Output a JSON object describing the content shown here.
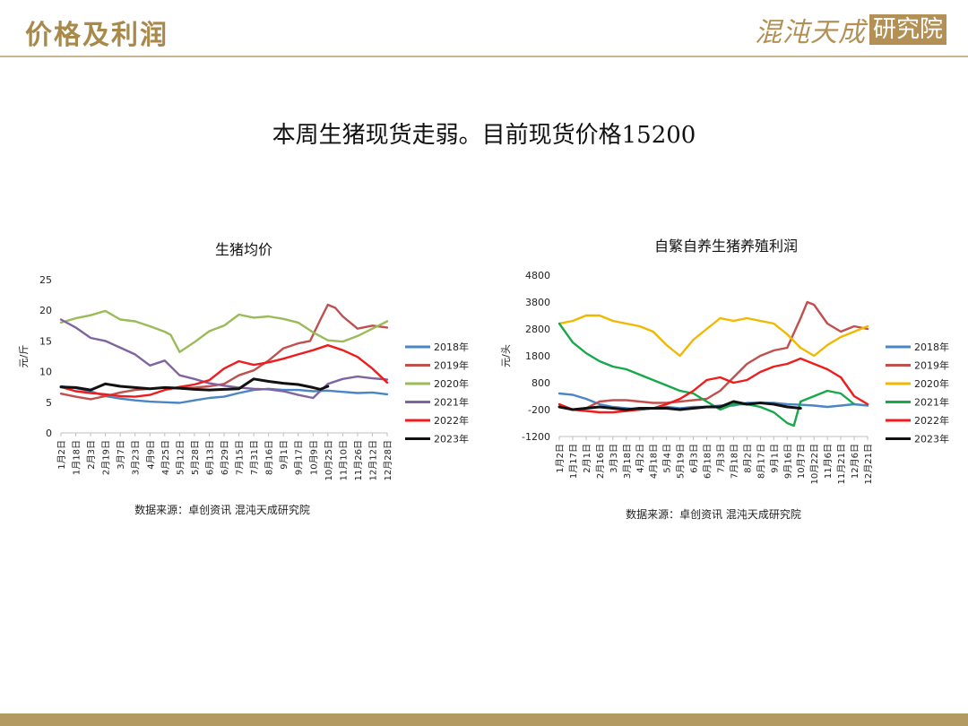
{
  "header": {
    "title": "价格及利润",
    "logo_text": "混沌天成",
    "logo_box": "研究院"
  },
  "headline": "本周生猪现货走弱。目前现货价格15200",
  "colors": {
    "2018年": "#4a86c5",
    "2019年": "#c0504d",
    "2020年": "#9bbb59",
    "2021年": "#8064a2",
    "2022年": "#ee1c1c",
    "2023年": "#111111",
    "2020年_profit": "#f2b800",
    "2021年_profit": "#17a84a"
  },
  "chart_data": [
    {
      "type": "line",
      "title": "生猪均价",
      "ylabel": "元/斤",
      "ylim": [
        0,
        25
      ],
      "yticks": [
        0,
        5,
        10,
        15,
        20,
        25
      ],
      "xticks": [
        "1月2日",
        "1月18日",
        "2月3日",
        "2月19日",
        "3月7日",
        "3月23日",
        "4月9日",
        "4月25日",
        "5月12日",
        "5月28日",
        "6月13日",
        "6月29日",
        "7月15日",
        "7月31日",
        "8月16日",
        "9月1日",
        "9月17日",
        "10月9日",
        "10月25日",
        "11月10日",
        "11月26日",
        "12月12日",
        "12月28日"
      ],
      "x_count": 23,
      "source": "数据来源：卓创资讯 混沌天成研究院",
      "series": [
        {
          "name": "2018年",
          "x": [
            0,
            1,
            2,
            3,
            4,
            5,
            6,
            7,
            8,
            9,
            10,
            11,
            12,
            13,
            14,
            15,
            16,
            17,
            18,
            19,
            20,
            21,
            22
          ],
          "values": [
            7.6,
            7.3,
            6.8,
            6.0,
            5.6,
            5.3,
            5.1,
            5.0,
            4.9,
            5.3,
            5.7,
            5.9,
            6.5,
            7.0,
            7.2,
            7.0,
            7.0,
            6.8,
            6.9,
            6.7,
            6.5,
            6.6,
            6.3
          ]
        },
        {
          "name": "2019年",
          "x": [
            0,
            1,
            2,
            3,
            4,
            5,
            6,
            7,
            8,
            9,
            10,
            11,
            12,
            13,
            14,
            15,
            16,
            16.8,
            17.5,
            18.0,
            18.5,
            19,
            20,
            21,
            22
          ],
          "values": [
            6.4,
            5.9,
            5.5,
            6.0,
            6.6,
            7.0,
            7.2,
            7.4,
            7.3,
            7.4,
            7.6,
            8.0,
            9.4,
            10.2,
            11.8,
            13.8,
            14.6,
            15.0,
            18.5,
            20.9,
            20.4,
            19.0,
            17.0,
            17.5,
            17.2
          ]
        },
        {
          "name": "2020年",
          "x": [
            0,
            1,
            2,
            3,
            4,
            5,
            6,
            7,
            7.4,
            8,
            9,
            10,
            11,
            12,
            13,
            14,
            15,
            16,
            17,
            18,
            19,
            20,
            21,
            22
          ],
          "values": [
            18.0,
            18.7,
            19.2,
            19.9,
            18.5,
            18.2,
            17.4,
            16.5,
            16.0,
            13.2,
            14.8,
            16.6,
            17.5,
            19.3,
            18.8,
            19.0,
            18.6,
            18.0,
            16.4,
            15.1,
            14.9,
            15.8,
            17.0,
            18.2
          ]
        },
        {
          "name": "2021年",
          "x": [
            0,
            1,
            2,
            3,
            4,
            5,
            6,
            7,
            8,
            9,
            10,
            11,
            12,
            13,
            14,
            15,
            16,
            17,
            18,
            19,
            20,
            21,
            22
          ],
          "values": [
            18.5,
            17.2,
            15.5,
            15.0,
            13.9,
            12.8,
            11.0,
            11.8,
            9.4,
            8.8,
            8.1,
            7.7,
            7.4,
            7.2,
            7.1,
            6.8,
            6.2,
            5.7,
            8.0,
            8.8,
            9.2,
            8.9,
            8.7
          ]
        },
        {
          "name": "2022年",
          "x": [
            0,
            1,
            2,
            3,
            4,
            5,
            6,
            7,
            8,
            9,
            10,
            11,
            12,
            13,
            14,
            15,
            16,
            17,
            18,
            19,
            20,
            21,
            22
          ],
          "values": [
            7.5,
            6.8,
            6.5,
            6.3,
            6.0,
            5.9,
            6.2,
            7.0,
            7.5,
            7.9,
            8.6,
            10.5,
            11.7,
            11.1,
            11.5,
            12.1,
            12.8,
            13.5,
            14.3,
            13.5,
            12.4,
            10.5,
            8.2
          ]
        },
        {
          "name": "2023年",
          "x": [
            0,
            1,
            2,
            3,
            4,
            5,
            6,
            7,
            8,
            9,
            10,
            11,
            12,
            13,
            14,
            15,
            16,
            17,
            17.5,
            18.0
          ],
          "values": [
            7.5,
            7.4,
            7.0,
            8.0,
            7.6,
            7.4,
            7.2,
            7.4,
            7.3,
            7.1,
            7.0,
            7.1,
            7.2,
            8.8,
            8.4,
            8.1,
            7.9,
            7.4,
            7.1,
            7.6
          ]
        }
      ]
    },
    {
      "type": "line",
      "title": "自繁自养生猪养殖利润",
      "ylabel": "元/头",
      "ylim": [
        -1200,
        4800
      ],
      "yticks": [
        -1200,
        -200,
        800,
        1800,
        2800,
        3800,
        4800
      ],
      "xticks": [
        "1月2日",
        "1月17日",
        "2月1日",
        "2月16日",
        "3月3日",
        "3月18日",
        "4月2日",
        "4月18日",
        "5月4日",
        "5月19日",
        "6月3日",
        "6月18日",
        "7月3日",
        "7月18日",
        "8月2日",
        "8月17日",
        "9月1日",
        "9月16日",
        "10月7日",
        "10月22日",
        "11月6日",
        "11月21日",
        "12月6日",
        "12月21日"
      ],
      "x_count": 24,
      "source": "数据来源：卓创资讯 混沌天成研究院",
      "series": [
        {
          "name": "2018年",
          "x": [
            0,
            1,
            2,
            3,
            4,
            5,
            6,
            7,
            8,
            9,
            10,
            11,
            12,
            13,
            14,
            15,
            16,
            17,
            18,
            19,
            20,
            21,
            22,
            23
          ],
          "values": [
            400,
            350,
            200,
            0,
            -100,
            -150,
            -200,
            -150,
            -100,
            -150,
            -100,
            -100,
            -50,
            -50,
            50,
            50,
            50,
            0,
            -20,
            -50,
            -100,
            -50,
            0,
            -50
          ]
        },
        {
          "name": "2019年",
          "x": [
            0,
            1,
            2,
            3,
            4,
            5,
            6,
            7,
            8,
            9,
            10,
            11,
            12,
            13,
            14,
            15,
            16,
            17,
            18,
            18.5,
            19,
            20,
            21,
            22,
            23
          ],
          "values": [
            -100,
            -200,
            -150,
            100,
            150,
            150,
            100,
            50,
            50,
            100,
            150,
            200,
            500,
            1000,
            1500,
            1800,
            2000,
            2100,
            3200,
            3800,
            3700,
            3000,
            2700,
            2900,
            2800
          ]
        },
        {
          "name": "2020年",
          "x": [
            0,
            1,
            2,
            3,
            4,
            5,
            6,
            7,
            8,
            9,
            10,
            11,
            12,
            13,
            14,
            15,
            16,
            17,
            18,
            19,
            20,
            21,
            22,
            23
          ],
          "values": [
            3000,
            3100,
            3300,
            3300,
            3100,
            3000,
            2900,
            2700,
            2200,
            1800,
            2400,
            2800,
            3200,
            3100,
            3200,
            3100,
            3000,
            2600,
            2100,
            1800,
            2200,
            2500,
            2700,
            2900
          ]
        },
        {
          "name": "2021年",
          "x": [
            0,
            1,
            2,
            3,
            4,
            5,
            6,
            7,
            8,
            9,
            10,
            11,
            12,
            13,
            14,
            15,
            16,
            17,
            17.5,
            18,
            19,
            20,
            21,
            22
          ],
          "values": [
            3000,
            2300,
            1900,
            1600,
            1400,
            1300,
            1100,
            900,
            700,
            500,
            400,
            100,
            -200,
            0,
            0,
            -100,
            -300,
            -700,
            -800,
            100,
            300,
            500,
            400,
            0
          ]
        },
        {
          "name": "2022年",
          "x": [
            0,
            1,
            2,
            3,
            4,
            5,
            6,
            7,
            8,
            9,
            10,
            11,
            12,
            13,
            14,
            15,
            16,
            17,
            18,
            19,
            20,
            21,
            22,
            23
          ],
          "values": [
            0,
            -200,
            -250,
            -300,
            -300,
            -250,
            -200,
            -150,
            0,
            200,
            500,
            900,
            1000,
            800,
            900,
            1200,
            1400,
            1500,
            1700,
            1500,
            1300,
            1000,
            300,
            0
          ]
        },
        {
          "name": "2023年",
          "x": [
            0,
            1,
            2,
            3,
            4,
            5,
            6,
            7,
            8,
            9,
            10,
            11,
            12,
            13,
            14,
            15,
            16,
            17,
            18
          ],
          "values": [
            -100,
            -200,
            -150,
            -100,
            -150,
            -200,
            -150,
            -150,
            -150,
            -200,
            -150,
            -100,
            -100,
            100,
            0,
            50,
            0,
            -100,
            -150
          ]
        }
      ]
    }
  ]
}
